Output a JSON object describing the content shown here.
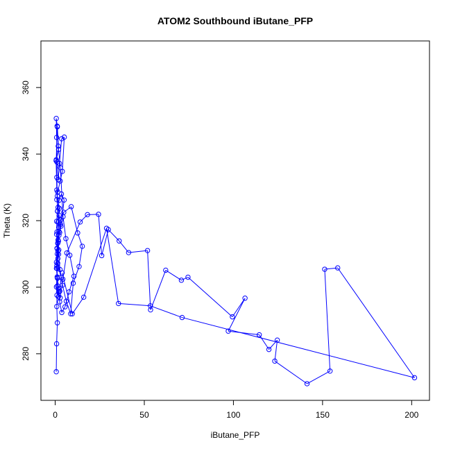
{
  "chart_data": {
    "type": "scatter",
    "title": "ATOM2 Southbound iButane_PFP",
    "xlabel": "iButane_PFP",
    "ylabel": "Theta (K)",
    "xlim": [
      -8,
      210
    ],
    "ylim": [
      266,
      374
    ],
    "xticks": [
      0,
      50,
      100,
      150,
      200
    ],
    "yticks": [
      280,
      300,
      320,
      340,
      360
    ],
    "grid": false,
    "legend": "none",
    "style": "points connected by lines (type='b')",
    "color": "#0000ff",
    "series": [
      {
        "x": [
          0.6,
          0.8,
          1.2,
          0.9,
          1.0,
          1.3,
          1.1,
          0.7,
          1.5,
          2.0,
          1.8,
          2.5,
          3.0,
          2.2,
          1.6,
          0.9,
          1.4,
          2.8,
          4.0,
          5.1,
          3.6,
          2.4,
          1.7,
          1.0,
          0.8,
          0.6,
          1.2,
          1.9,
          0.5,
          0.9,
          1.3,
          2.1,
          1.5,
          1.1,
          0.7,
          1.8,
          2.6,
          3.3,
          1.4,
          1.0,
          0.8,
          1.6,
          2.3,
          1.2,
          0.9,
          0.6,
          1.1,
          1.7,
          2.9,
          4.4,
          6.0,
          8.2,
          10.5,
          7.8,
          5.5,
          3.7,
          2.5,
          1.8,
          1.3,
          0.9,
          1.2,
          1.6,
          2.0,
          3.1,
          4.8,
          9.0,
          12.6,
          15.2,
          13.4,
          10.1,
          8.7,
          6.2,
          4.1,
          2.7,
          1.9,
          1.4,
          1.0,
          0.8,
          1.3,
          2.2,
          3.5,
          5.0,
          3.2,
          2.1,
          1.5,
          1.1,
          0.7,
          1.2,
          1.9,
          2.8,
          4.3,
          6.5,
          14.0,
          18.1,
          24.3,
          26.1,
          29.8,
          35.9,
          41.2,
          51.8,
          53.5,
          62.0,
          70.8,
          74.5,
          99.4,
          106.5,
          97.1,
          114.5,
          119.9,
          124.6,
          123.2,
          141.3,
          154.2,
          151.2,
          158.5,
          201.6,
          71.2,
          53.4,
          35.5,
          28.8,
          16.0,
          9.6,
          3.9
        ],
        "y": [
          274.6,
          283.0,
          289.3,
          294.2,
          297.6,
          300.4,
          303.1,
          305.7,
          308.6,
          311.2,
          313.8,
          316.4,
          318.9,
          321.6,
          324.0,
          326.3,
          328.6,
          331.9,
          334.8,
          345.1,
          344.6,
          337.2,
          332.3,
          337.6,
          345.0,
          350.7,
          348.2,
          341.4,
          338.0,
          329.2,
          322.8,
          316.8,
          310.9,
          305.6,
          300.1,
          297.1,
          298.8,
          303.0,
          307.2,
          311.7,
          315.9,
          319.6,
          323.7,
          327.4,
          333.0,
          338.3,
          348.4,
          342.4,
          335.9,
          321.2,
          314.6,
          309.6,
          303.3,
          298.6,
          294.1,
          292.4,
          295.6,
          299.5,
          302.7,
          306.4,
          310.0,
          314.2,
          318.0,
          320.2,
          322.5,
          324.2,
          316.3,
          312.3,
          306.2,
          301.2,
          292.0,
          295.8,
          300.6,
          305.3,
          309.9,
          313.2,
          316.6,
          319.8,
          322.9,
          326.1,
          328.0,
          326.2,
          318.3,
          315.6,
          313.3,
          311.6,
          307.5,
          302.8,
          298.6,
          296.8,
          302.4,
          310.3,
          319.6,
          321.8,
          321.9,
          309.5,
          317.3,
          313.9,
          310.4,
          311.0,
          293.2,
          305.1,
          302.1,
          303.0,
          291.1,
          296.7,
          286.8,
          285.7,
          281.3,
          284.1,
          277.8,
          271.0,
          274.8,
          305.4,
          305.8,
          272.8,
          290.9,
          294.4,
          295.1,
          317.7,
          297.0,
          292.0,
          304.3
        ]
      }
    ]
  }
}
